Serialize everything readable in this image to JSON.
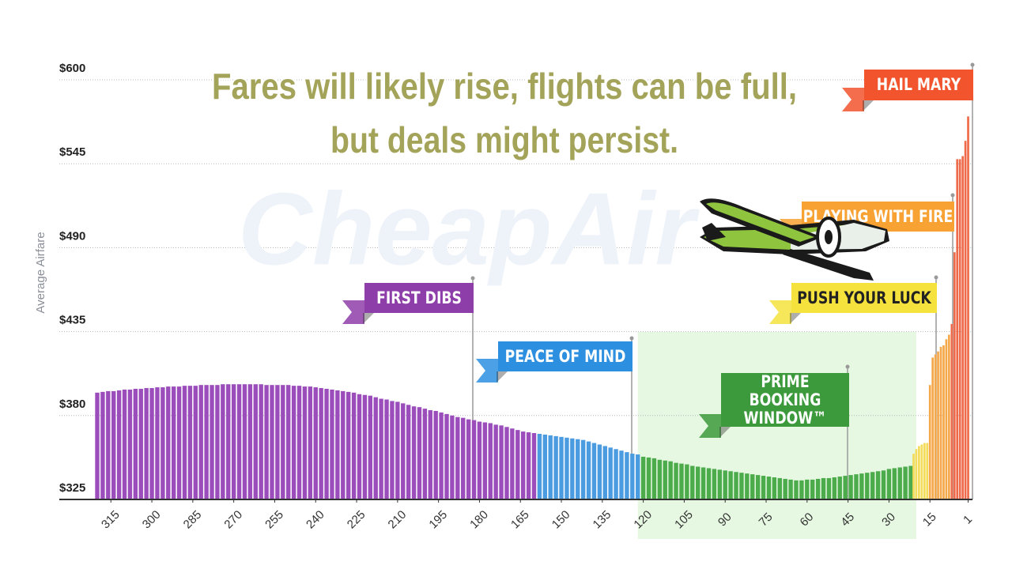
{
  "chart_data": {
    "type": "bar",
    "headline": [
      "Fares will likely rise, flights can be full,",
      "but deals might persist."
    ],
    "watermark": "CheapAir",
    "y_label": "Average Airfare",
    "xlim": [
      320,
      0
    ],
    "ylim": [
      325,
      600
    ],
    "xticks": [
      315,
      300,
      285,
      270,
      255,
      240,
      225,
      210,
      195,
      180,
      165,
      150,
      135,
      120,
      105,
      90,
      75,
      60,
      45,
      30,
      15,
      1
    ],
    "yticks": [
      {
        "value": 325,
        "label": "$325"
      },
      {
        "value": 380,
        "label": "$380"
      },
      {
        "value": 435,
        "label": "$435"
      },
      {
        "value": 490,
        "label": "$490"
      },
      {
        "value": 545,
        "label": "$545"
      },
      {
        "value": 600,
        "label": "$600"
      }
    ],
    "grid": true,
    "series": [
      {
        "name": "FIRST DIBS",
        "color": "#9b4dbb",
        "x": [
          320,
          318,
          316,
          314,
          312,
          310,
          308,
          306,
          304,
          302,
          300,
          298,
          296,
          294,
          292,
          290,
          288,
          286,
          284,
          282,
          280,
          278,
          276,
          274,
          272,
          270,
          268,
          266,
          264,
          262,
          260,
          258,
          256,
          254,
          252,
          250,
          248,
          246,
          244,
          242,
          240,
          238,
          236,
          234,
          232,
          230,
          228,
          226,
          224,
          222,
          220,
          218,
          216,
          214,
          212,
          210,
          208,
          206,
          204,
          202,
          200,
          198,
          196,
          194,
          192,
          190,
          188,
          186,
          184,
          182,
          180,
          178,
          176,
          174,
          172,
          170,
          168,
          166,
          164,
          162,
          160
        ],
        "values": [
          395,
          395.5,
          396,
          396,
          396.5,
          397,
          397,
          397.5,
          397.5,
          398,
          398,
          398.5,
          398.5,
          399,
          399,
          399,
          399.5,
          399.5,
          399.5,
          400,
          400,
          400,
          400,
          400.5,
          400.5,
          400.5,
          400.5,
          400.5,
          400.5,
          400.5,
          400.5,
          400,
          400,
          400,
          400,
          400,
          399.5,
          399.5,
          399,
          399,
          398.5,
          398,
          397.5,
          397,
          396.5,
          396,
          395.5,
          395,
          394,
          393.5,
          393,
          392,
          391,
          390.5,
          389.5,
          389,
          388,
          387,
          386,
          385.5,
          384.5,
          383.5,
          383,
          382,
          381,
          380,
          379,
          378.5,
          377.5,
          377,
          376,
          375.5,
          375,
          374,
          373.5,
          372.5,
          371.5,
          370.5,
          369.5,
          369,
          368.5
        ]
      },
      {
        "name": "PEACE OF MIND",
        "color": "#4a9be0",
        "x": [
          158,
          156,
          154,
          152,
          150,
          148,
          146,
          144,
          142,
          140,
          138,
          136,
          134,
          132,
          130,
          128,
          126,
          124,
          122
        ],
        "values": [
          368,
          367.5,
          367,
          366.5,
          366,
          365.5,
          365,
          364.5,
          364,
          363,
          362,
          361,
          360,
          359,
          358,
          357,
          356,
          355,
          354.5
        ]
      },
      {
        "name": "PRIME BOOKING WINDOW™",
        "color": "#4cab4a",
        "x": [
          120,
          118,
          116,
          114,
          112,
          110,
          108,
          106,
          104,
          102,
          100,
          98,
          96,
          94,
          92,
          90,
          88,
          86,
          84,
          82,
          80,
          78,
          76,
          74,
          72,
          70,
          68,
          66,
          64,
          62,
          60,
          58,
          56,
          54,
          52,
          50,
          48,
          46,
          44,
          42,
          40,
          38,
          36,
          34,
          32,
          30,
          28,
          26,
          24,
          22
        ],
        "values": [
          353,
          352.5,
          352,
          351,
          350.5,
          350,
          349,
          348.5,
          348,
          347,
          346.5,
          346,
          345.5,
          345,
          344.5,
          344,
          343.5,
          343,
          342.5,
          342,
          341.5,
          341,
          340.5,
          340,
          339.5,
          339,
          338.5,
          338,
          337.5,
          337.5,
          338,
          338,
          338.5,
          339,
          339,
          339.5,
          340,
          340.5,
          341,
          341.5,
          342,
          342.5,
          343,
          343.5,
          344,
          345,
          345.5,
          346,
          346.5,
          347
        ]
      },
      {
        "name": "PUSH YOUR LUCK",
        "color": "#f3dc5a",
        "x": [
          21,
          20,
          19,
          18,
          17,
          16
        ],
        "values": [
          355,
          358,
          360,
          361,
          362,
          362
        ]
      },
      {
        "name": "PLAYING WITH FIRE",
        "color": "#f5a84a",
        "x": [
          15,
          14,
          13,
          12,
          11,
          10,
          9,
          8
        ],
        "values": [
          400,
          418,
          420,
          422,
          425,
          426,
          430,
          433
        ]
      },
      {
        "name": "HAIL MARY",
        "color": "#ee6a4a",
        "x": [
          7,
          6,
          5,
          4,
          3,
          2,
          1
        ],
        "values": [
          440,
          487,
          548,
          548,
          550,
          560,
          576
        ]
      }
    ]
  }
}
